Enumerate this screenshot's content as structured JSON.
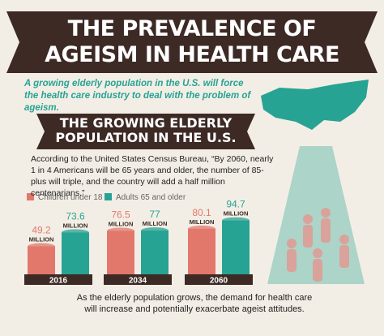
{
  "header": {
    "title_lines": [
      "THE PREVALENCE OF",
      "AGEISM IN HEALTH CARE"
    ],
    "subtitle": "A growing elderly population in the U.S. will force the health care industry to deal with the problem of ageism."
  },
  "section_title_lines": [
    "THE GROWING ELDERLY",
    "POPULATION IN THE U.S."
  ],
  "quote": "According to the United States Census Bureau, “By 2060, nearly 1 in 4 Americans will be 65 years and older, the number of 85-plus will triple, and the country will add a half million centenarians.”",
  "chart_data": {
    "type": "bar",
    "categories": [
      "2016",
      "2034",
      "2060"
    ],
    "series": [
      {
        "name": "Children under 18",
        "color": "#e2786c",
        "values": [
          49.2,
          76.5,
          80.1
        ]
      },
      {
        "name": "Adults 65 and older",
        "color": "#27a394",
        "values": [
          73.6,
          77,
          94.7
        ]
      }
    ],
    "unit": "MILLION"
  },
  "footer": "As the elderly population grows, the demand for health care will increase and potentially exacerbate ageist attitudes."
}
